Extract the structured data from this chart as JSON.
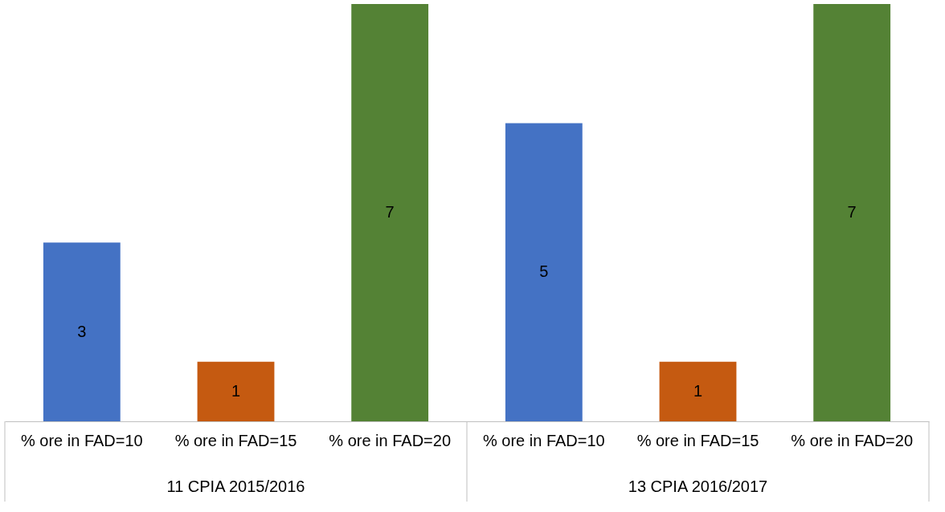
{
  "chart_data": {
    "type": "bar",
    "categories": [
      "% ore in FAD=10",
      "% ore in FAD=15",
      "% ore in FAD=20",
      "% ore in FAD=10",
      "% ore in FAD=15",
      "% ore in FAD=20"
    ],
    "values": [
      3,
      1,
      7,
      5,
      1,
      7
    ],
    "colors": [
      "#4472c4",
      "#c55a11",
      "#548235",
      "#4472c4",
      "#c55a11",
      "#548235"
    ],
    "data_labels": true,
    "annotations": [
      "11 CPIA 2015/2016",
      "13 CPIA 2016/2017"
    ]
  }
}
